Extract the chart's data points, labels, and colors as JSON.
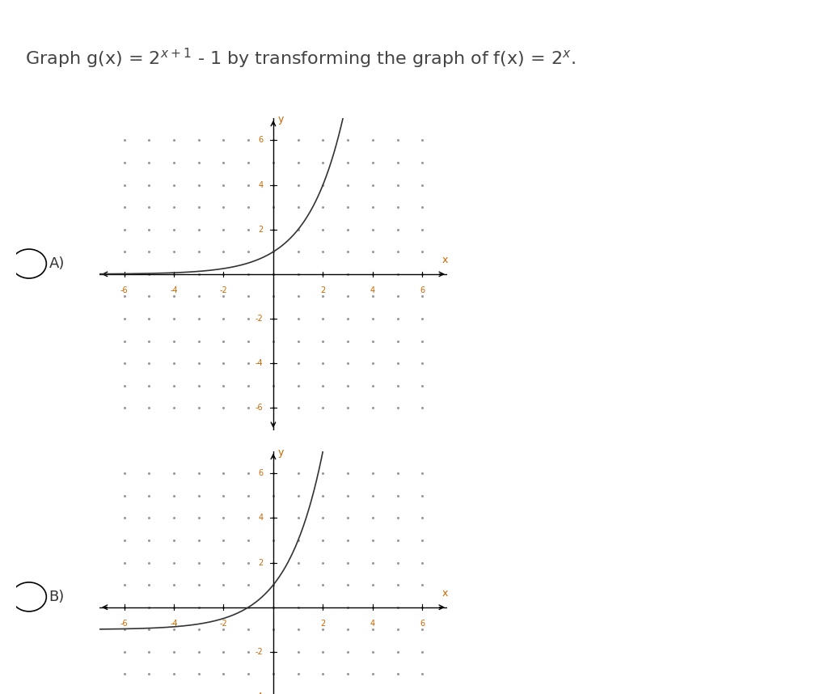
{
  "title_text": "Graph g(x) = 2",
  "title_sup": "x + 1",
  "title_rest": " - 1 by transforming the graph of f(x) = 2",
  "title_sup2": "x",
  "title_end": ".",
  "background_color": "#ffffff",
  "curve_color": "#333333",
  "axis_color": "#000000",
  "dot_color": "#999999",
  "label_A": "A)",
  "label_B": "B)",
  "xlim": [
    -7,
    7
  ],
  "ylim": [
    -7,
    7
  ],
  "xticks": [
    -6,
    -4,
    -2,
    2,
    4,
    6
  ],
  "yticks": [
    -6,
    -4,
    -2,
    2,
    4,
    6
  ],
  "graph_A_desc": "2^x (standard exponential, asymptote y=0)",
  "graph_B_desc": "2^(x+1)-1 (shifted left 1, down 1, asymptote y=-1)"
}
